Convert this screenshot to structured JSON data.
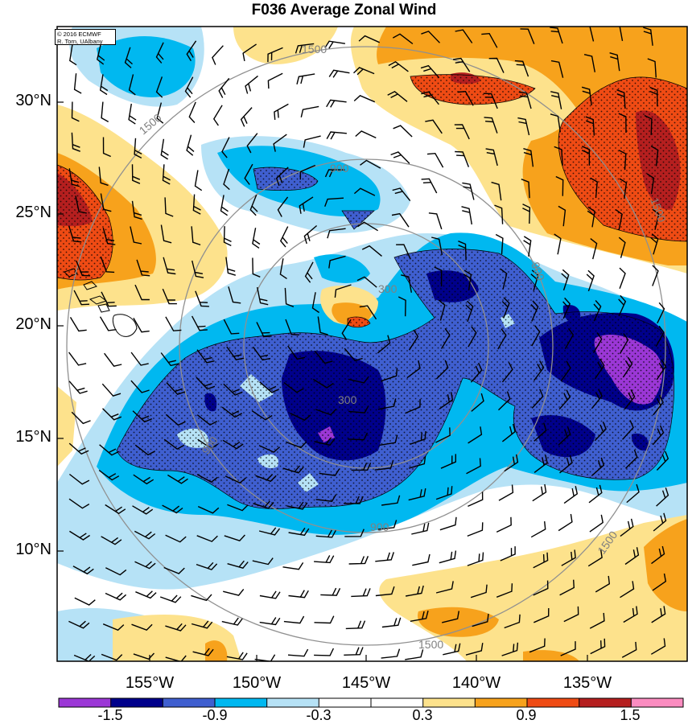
{
  "title": "F036 Average Zonal Wind",
  "credit": {
    "line1": "© 2016 ECMWF",
    "line2": "R. Torn, UAlbany"
  },
  "lat_labels": [
    "30°N",
    "25°N",
    "20°N",
    "15°N",
    "10°N"
  ],
  "lon_labels": [
    "155°W",
    "150°W",
    "145°W",
    "140°W",
    "135°W"
  ],
  "contour_labels": [
    "300",
    "300",
    "900",
    "900",
    "900",
    "900",
    "1500",
    "1500",
    "1500",
    "1500",
    "1500"
  ],
  "colorbar": {
    "labels": [
      "-1.5",
      "-0.9",
      "-0.3",
      "0.3",
      "0.9",
      "1.5"
    ],
    "colors": [
      "#9b37d6",
      "#00008b",
      "#3f5fd0",
      "#00b8f0",
      "#b6e2f6",
      "#ffffff",
      "#ffffff",
      "#fde28c",
      "#f7a21c",
      "#ef4b14",
      "#b51f1f",
      "#fb8cc0"
    ]
  },
  "colors": {
    "purple": "#9b37d6",
    "navy": "#00008b",
    "medblue": "#3f5fd0",
    "cyan": "#00b8f0",
    "lightblue": "#b6e2f6",
    "yellow": "#fde28c",
    "orange": "#f7a21c",
    "redorange": "#ef4b14",
    "darkred": "#b51f1f"
  }
}
